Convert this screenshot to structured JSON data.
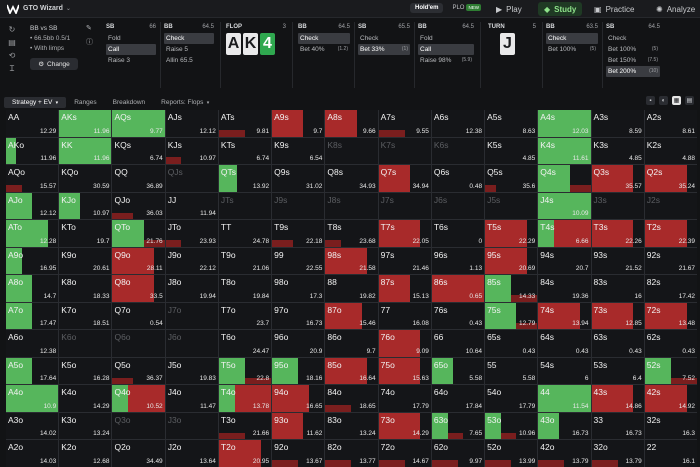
{
  "topbar": {
    "app_title": "GTO Wizard",
    "modes": [
      {
        "label": "Hold'em",
        "active": true
      },
      {
        "label": "PLO",
        "badge": "NEW"
      }
    ],
    "nav": [
      {
        "label": "Play",
        "icon": "play-icon"
      },
      {
        "label": "Study",
        "icon": "study-icon",
        "active": true
      },
      {
        "label": "Practice",
        "icon": "practice-icon"
      },
      {
        "label": "Analyze",
        "icon": "analyze-icon"
      }
    ]
  },
  "spot": {
    "title": "BB vs SB",
    "line1": "• 66.5bb 0.5/1",
    "line2": "• With limps",
    "change_label": "Change"
  },
  "panels": [
    {
      "pos": "SB",
      "stack": "66",
      "actions": [
        {
          "label": "Fold"
        },
        {
          "label": "Call",
          "selected": true
        },
        {
          "label": "Raise 3"
        }
      ]
    },
    {
      "pos": "BB",
      "stack": "64.5",
      "actions": [
        {
          "label": "Check",
          "selected": true
        },
        {
          "label": "Raise 5"
        },
        {
          "label": "Allin 65.5"
        }
      ]
    },
    {
      "pos": "FLOP",
      "stack": "3",
      "cards": [
        "A",
        "K",
        "4"
      ]
    },
    {
      "pos": "BB",
      "stack": "64.5",
      "actions": [
        {
          "label": "Check",
          "selected": true
        },
        {
          "label": "Bet 40%",
          "freq": "(1.2)"
        }
      ]
    },
    {
      "pos": "SB",
      "stack": "65.5",
      "actions": [
        {
          "label": "Check"
        },
        {
          "label": "Bet 33%",
          "freq": "(1)",
          "selected": true
        }
      ]
    },
    {
      "pos": "BB",
      "stack": "64.5",
      "actions": [
        {
          "label": "Fold"
        },
        {
          "label": "Call",
          "selected": true
        },
        {
          "label": "Raise 98%",
          "freq": "(5.9)"
        }
      ]
    },
    {
      "pos": "TURN",
      "stack": "5",
      "cards": [
        "J"
      ]
    },
    {
      "pos": "BB",
      "stack": "63.5",
      "actions": [
        {
          "label": "Check",
          "selected": true
        },
        {
          "label": "Bet 100%",
          "freq": "(5)"
        }
      ]
    },
    {
      "pos": "SB",
      "stack": "64.5",
      "actions": [
        {
          "label": "Check"
        },
        {
          "label": "Bet 100%",
          "freq": "(5)"
        },
        {
          "label": "Bet 150%",
          "freq": "(7.5)"
        },
        {
          "label": "Bet 200%",
          "freq": "(10)",
          "selected": true
        }
      ]
    }
  ],
  "tabs": [
    {
      "label": "Strategy + EV",
      "active": true
    },
    {
      "label": "Ranges"
    },
    {
      "label": "Breakdown"
    },
    {
      "label": "Reports: Flops"
    }
  ],
  "grid": [
    [
      [
        "AA",
        "12.29",
        0,
        0
      ],
      [
        "AKs",
        "11.96",
        1,
        0
      ],
      [
        "AQs",
        "9.77",
        1,
        0
      ],
      [
        "AJs",
        "12.12",
        0,
        0
      ],
      [
        "ATs",
        "9.81",
        0,
        0.5
      ],
      [
        "A9s",
        "9.7",
        0,
        0.6
      ],
      [
        "A8s",
        "9.66",
        0,
        0.6
      ],
      [
        "A7s",
        "9.55",
        0,
        0.5
      ],
      [
        "A6s",
        "12.38",
        0,
        0
      ],
      [
        "A5s",
        "8.63",
        0,
        0
      ],
      [
        "A4s",
        "12.03",
        1,
        0
      ],
      [
        "A3s",
        "8.59",
        0,
        0
      ],
      [
        "A2s",
        "8.61",
        0,
        0
      ]
    ],
    [
      [
        "AKo",
        "11.96",
        0.2,
        0
      ],
      [
        "KK",
        "11.96",
        1,
        0
      ],
      [
        "KQs",
        "6.74",
        0,
        0
      ],
      [
        "KJs",
        "10.97",
        0,
        0.3
      ],
      [
        "KTs",
        "6.74",
        0,
        0
      ],
      [
        "K9s",
        "6.54",
        0,
        0
      ],
      [
        "K8s",
        "",
        0,
        0,
        1
      ],
      [
        "K7s",
        "",
        0,
        0,
        1
      ],
      [
        "K6s",
        "",
        0,
        0,
        1
      ],
      [
        "K5s",
        "4.85",
        0,
        0
      ],
      [
        "K4s",
        "11.61",
        1,
        0
      ],
      [
        "K3s",
        "4.85",
        0,
        0
      ],
      [
        "K2s",
        "4.88",
        0,
        0
      ]
    ],
    [
      [
        "AQo",
        "15.57",
        0,
        0.3
      ],
      [
        "KQo",
        "30.59",
        0,
        0
      ],
      [
        "QQ",
        "36.89",
        0,
        0
      ],
      [
        "QJs",
        "",
        0,
        0,
        1
      ],
      [
        "QTs",
        "13.92",
        0.35,
        0
      ],
      [
        "Q9s",
        "31.02",
        0,
        0
      ],
      [
        "Q8s",
        "34.93",
        0,
        0
      ],
      [
        "Q7s",
        "34.94",
        0,
        0.6
      ],
      [
        "Q6s",
        "0.48",
        0,
        0
      ],
      [
        "Q5s",
        "35.6",
        0,
        0.2
      ],
      [
        "Q4s",
        "",
        0.6,
        0.4
      ],
      [
        "Q3s",
        "35.57",
        0,
        0.8
      ],
      [
        "Q2s",
        "35.24",
        0,
        0.8
      ]
    ],
    [
      [
        "AJo",
        "12.12",
        0.5,
        0
      ],
      [
        "KJo",
        "10.97",
        0.4,
        0
      ],
      [
        "QJo",
        "36.03",
        0,
        0.4
      ],
      [
        "JJ",
        "11.94",
        0,
        0
      ],
      [
        "JTs",
        "",
        0,
        0,
        1
      ],
      [
        "J9s",
        "",
        0,
        0,
        1
      ],
      [
        "J8s",
        "",
        0,
        0,
        1
      ],
      [
        "J7s",
        "",
        0,
        0,
        1
      ],
      [
        "J6s",
        "",
        0,
        0,
        1
      ],
      [
        "J5s",
        "",
        0,
        0,
        1
      ],
      [
        "J4s",
        "10.09",
        1,
        0
      ],
      [
        "J3s",
        "",
        0,
        0,
        1
      ],
      [
        "J2s",
        "",
        0,
        0,
        1
      ]
    ],
    [
      [
        "ATo",
        "12.28",
        0.8,
        0
      ],
      [
        "KTo",
        "19.7",
        0,
        0
      ],
      [
        "QTo",
        "21.76",
        0.6,
        0.4
      ],
      [
        "JTo",
        "23.93",
        0,
        0.3
      ],
      [
        "TT",
        "24.78",
        0,
        0
      ],
      [
        "T9s",
        "22.18",
        0,
        0.4
      ],
      [
        "T8s",
        "23.68",
        0,
        0.3
      ],
      [
        "T7s",
        "22.05",
        0,
        0.8
      ],
      [
        "T6s",
        "0",
        0,
        0
      ],
      [
        "T5s",
        "22.29",
        0,
        0.8
      ],
      [
        "T4s",
        "6.66",
        0.3,
        0.7
      ],
      [
        "T3s",
        "22.26",
        0,
        0.8
      ],
      [
        "T2s",
        "22.39",
        0,
        0.8
      ]
    ],
    [
      [
        "A9o",
        "16.95",
        0.3,
        0
      ],
      [
        "K9o",
        "20.61",
        0,
        0
      ],
      [
        "Q9o",
        "28.11",
        0,
        0.8
      ],
      [
        "J9o",
        "22.12",
        0,
        0
      ],
      [
        "T9o",
        "21.06",
        0,
        0
      ],
      [
        "99",
        "22.55",
        0,
        0
      ],
      [
        "98s",
        "21.58",
        0,
        0.8
      ],
      [
        "97s",
        "21.46",
        0,
        0
      ],
      [
        "96s",
        "1.13",
        0,
        0
      ],
      [
        "95s",
        "20.69",
        0,
        0.8
      ],
      [
        "94s",
        "20.7",
        0,
        0
      ],
      [
        "93s",
        "21.52",
        0,
        0
      ],
      [
        "92s",
        "21.67",
        0,
        0
      ]
    ],
    [
      [
        "A8o",
        "14.7",
        0.5,
        0
      ],
      [
        "K8o",
        "18.33",
        0,
        0
      ],
      [
        "Q8o",
        "33.5",
        0,
        0.8
      ],
      [
        "J8o",
        "19.94",
        0,
        0
      ],
      [
        "T8o",
        "19.84",
        0,
        0
      ],
      [
        "98o",
        "17.3",
        0,
        0
      ],
      [
        "88",
        "19.82",
        0,
        0
      ],
      [
        "87s",
        "15.13",
        0,
        0.6
      ],
      [
        "86s",
        "0.65",
        0,
        1
      ],
      [
        "85s",
        "14.33",
        0.5,
        0.5
      ],
      [
        "84s",
        "19.36",
        0,
        0
      ],
      [
        "83s",
        "16",
        0,
        0
      ],
      [
        "82s",
        "17.42",
        0,
        0
      ]
    ],
    [
      [
        "A7o",
        "17.47",
        0.5,
        0
      ],
      [
        "K7o",
        "18.51",
        0,
        0
      ],
      [
        "Q7o",
        "0.54",
        0,
        0
      ],
      [
        "J7o",
        "",
        0,
        0,
        1
      ],
      [
        "T7o",
        "23.7",
        0,
        0
      ],
      [
        "97o",
        "16.73",
        0,
        0
      ],
      [
        "87o",
        "15.46",
        0,
        0.7
      ],
      [
        "77",
        "16.08",
        0,
        0
      ],
      [
        "76s",
        "0.43",
        0,
        0
      ],
      [
        "75s",
        "12.79",
        0.6,
        0.4
      ],
      [
        "74s",
        "13.94",
        0,
        0.8
      ],
      [
        "73s",
        "12.85",
        0,
        0.8
      ],
      [
        "72s",
        "13.48",
        0,
        0.8
      ]
    ],
    [
      [
        "A6o",
        "12.38",
        0,
        0
      ],
      [
        "K6o",
        "",
        0,
        0,
        1
      ],
      [
        "Q6o",
        "",
        0,
        0,
        1
      ],
      [
        "J6o",
        "",
        0,
        0,
        1
      ],
      [
        "T6o",
        "24.47",
        0,
        0
      ],
      [
        "96o",
        "20.9",
        0,
        0
      ],
      [
        "86o",
        "9.7",
        0,
        0
      ],
      [
        "76o",
        "9.09",
        0,
        0.8
      ],
      [
        "66",
        "10.64",
        0,
        0
      ],
      [
        "65s",
        "0.43",
        0,
        0
      ],
      [
        "64s",
        "0.43",
        0,
        0
      ],
      [
        "63s",
        "0.43",
        0,
        0
      ],
      [
        "62s",
        "0.43",
        0,
        0
      ]
    ],
    [
      [
        "A5o",
        "17.64",
        0.5,
        0
      ],
      [
        "K5o",
        "16.28",
        0,
        0
      ],
      [
        "Q5o",
        "36.37",
        0,
        0.4
      ],
      [
        "J5o",
        "19.83",
        0,
        0
      ],
      [
        "T5o",
        "22.8",
        0.5,
        0.5
      ],
      [
        "95o",
        "18.16",
        0.5,
        0
      ],
      [
        "85o",
        "16.64",
        0,
        0.8
      ],
      [
        "75o",
        "15.63",
        0,
        0.8
      ],
      [
        "65o",
        "5.58",
        0.4,
        0
      ],
      [
        "55",
        "5.58",
        0,
        0
      ],
      [
        "54s",
        "6",
        0,
        0
      ],
      [
        "53s",
        "6.4",
        0,
        0
      ],
      [
        "52s",
        "7.52",
        0.5,
        0.5
      ]
    ],
    [
      [
        "A4o",
        "10.9",
        1,
        0
      ],
      [
        "K4o",
        "14.29",
        0,
        0
      ],
      [
        "Q4o",
        "10.52",
        0.3,
        0.7
      ],
      [
        "J4o",
        "11.47",
        0,
        0
      ],
      [
        "T4o",
        "13.78",
        0.3,
        0.7
      ],
      [
        "94o",
        "16.65",
        0,
        0.7
      ],
      [
        "84o",
        "18.65",
        0,
        0.5
      ],
      [
        "74o",
        "17.79",
        0,
        0
      ],
      [
        "64o",
        "17.84",
        0,
        0
      ],
      [
        "54o",
        "17.79",
        0,
        0
      ],
      [
        "44",
        "11.54",
        1,
        0
      ],
      [
        "43s",
        "14.86",
        0,
        0.8
      ],
      [
        "42s",
        "14.92",
        0,
        0.8
      ]
    ],
    [
      [
        "A3o",
        "14.02",
        0,
        0
      ],
      [
        "K3o",
        "13.24",
        0,
        0
      ],
      [
        "Q3o",
        "",
        0,
        0,
        1
      ],
      [
        "J3o",
        "",
        0,
        0,
        1
      ],
      [
        "T3o",
        "21.66",
        0,
        0.5
      ],
      [
        "93o",
        "11.62",
        0,
        0.6
      ],
      [
        "83o",
        "13.24",
        0,
        0
      ],
      [
        "73o",
        "14.29",
        0,
        0.8
      ],
      [
        "63o",
        "7.65",
        0.3,
        0.3
      ],
      [
        "53o",
        "10.96",
        0.3,
        0.3
      ],
      [
        "43o",
        "16.73",
        0.4,
        0
      ],
      [
        "33",
        "16.73",
        0,
        0
      ],
      [
        "32s",
        "16.3",
        0,
        0
      ]
    ],
    [
      [
        "A2o",
        "14.03",
        0,
        0
      ],
      [
        "K2o",
        "12.68",
        0,
        0
      ],
      [
        "Q2o",
        "34.49",
        0,
        0
      ],
      [
        "J2o",
        "13.64",
        0,
        0
      ],
      [
        "T2o",
        "20.95",
        0,
        0.8
      ],
      [
        "92o",
        "13.67",
        0,
        0.5
      ],
      [
        "82o",
        "13.77",
        0,
        0.5
      ],
      [
        "72o",
        "14.67",
        0,
        0.5
      ],
      [
        "62o",
        "9.97",
        0,
        0.5
      ],
      [
        "52o",
        "13.99",
        0,
        0.5
      ],
      [
        "42o",
        "13.79",
        0,
        0.5
      ],
      [
        "32o",
        "13.79",
        0,
        0.5
      ],
      [
        "22",
        "16.1",
        0,
        0
      ]
    ]
  ]
}
